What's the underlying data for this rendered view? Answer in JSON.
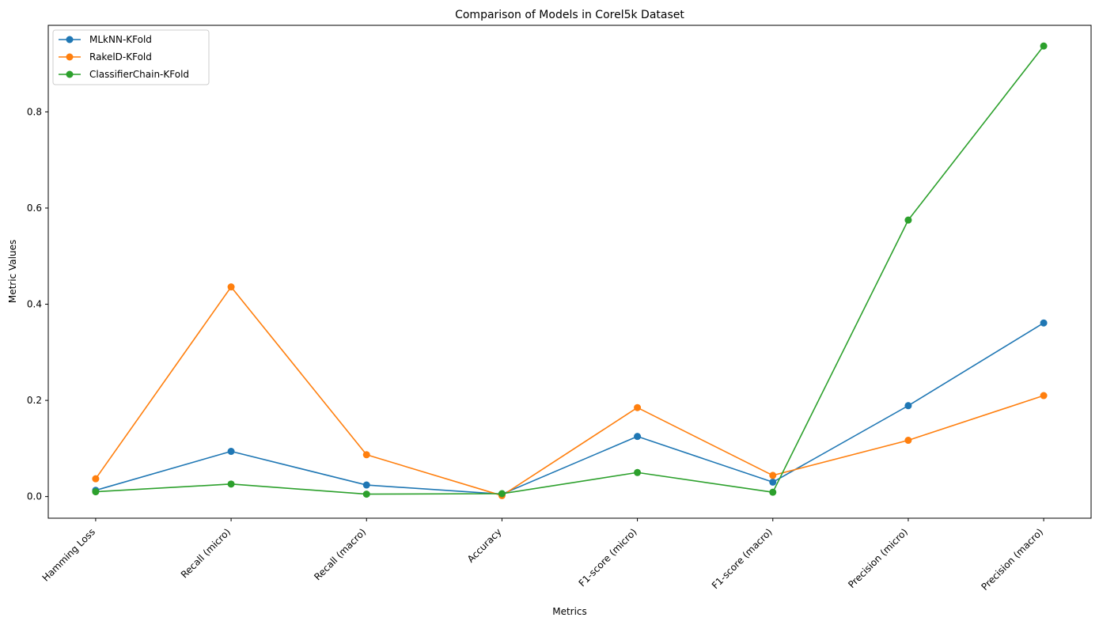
{
  "chart_data": {
    "type": "line",
    "title": "Comparison of Models in Corel5k Dataset",
    "xlabel": "Metrics",
    "ylabel": "Metric Values",
    "categories": [
      "Hamming Loss",
      "Recall (micro)",
      "Recall (macro)",
      "Accuracy",
      "F1-score (micro)",
      "F1-score (macro)",
      "Precision (micro)",
      "Precision (macro)"
    ],
    "ylim": [
      -0.045,
      0.98
    ],
    "yticks": [
      0.0,
      0.2,
      0.4,
      0.6,
      0.8
    ],
    "ytick_labels": [
      "0.0",
      "0.2",
      "0.4",
      "0.6",
      "0.8"
    ],
    "grid": false,
    "legend_position": "top-left",
    "marker": "circle",
    "series": [
      {
        "name": "MLkNN-KFold",
        "color": "#1f77b4",
        "values": [
          0.013,
          0.094,
          0.024,
          0.005,
          0.125,
          0.03,
          0.189,
          0.361
        ]
      },
      {
        "name": "RakelD-KFold",
        "color": "#ff7f0e",
        "values": [
          0.037,
          0.436,
          0.087,
          0.002,
          0.185,
          0.044,
          0.117,
          0.21
        ]
      },
      {
        "name": "ClassifierChain-KFold",
        "color": "#2ca02c",
        "values": [
          0.01,
          0.026,
          0.005,
          0.006,
          0.05,
          0.009,
          0.575,
          0.937
        ]
      }
    ]
  }
}
